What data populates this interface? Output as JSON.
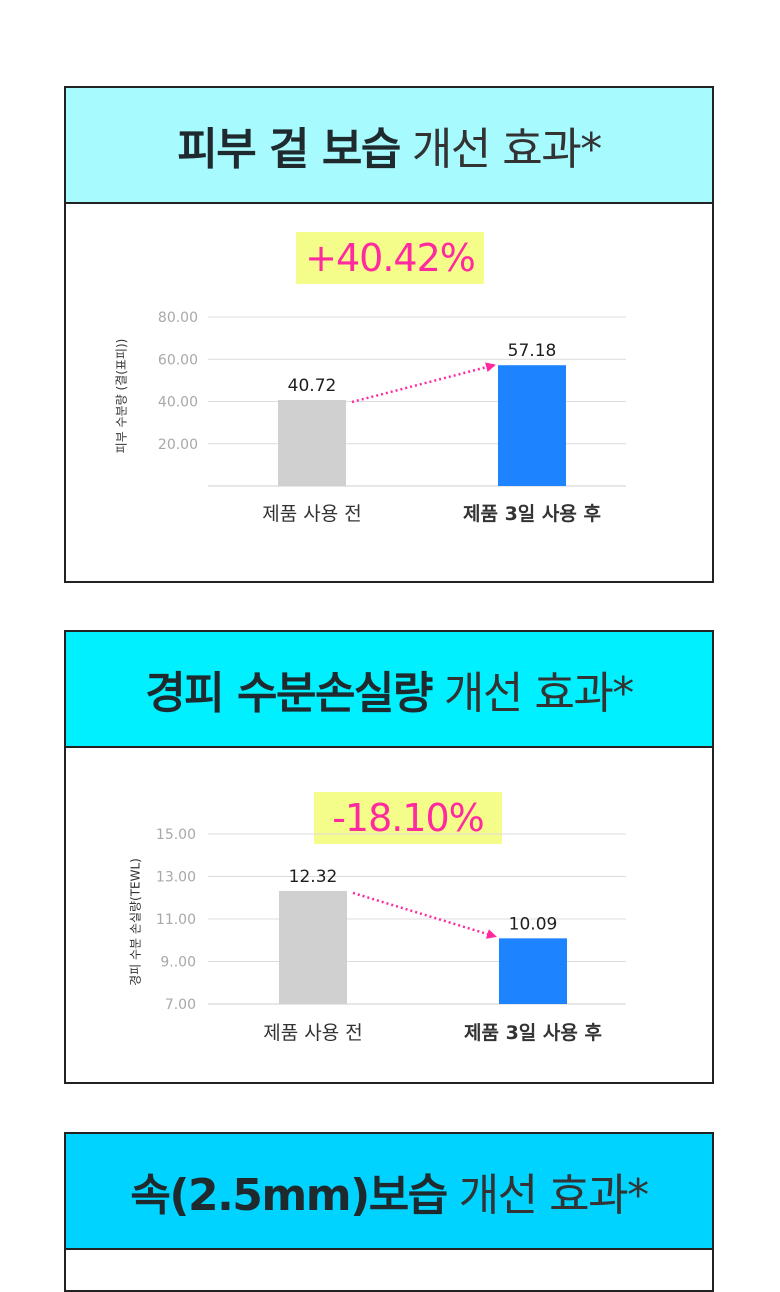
{
  "colors": {
    "before_bar": "#d0d0d0",
    "after_bar": "#1e83ff",
    "arrow": "#ff2aa0",
    "badge_bg": "#f4fc8a",
    "badge_text": "#ff2aa0"
  },
  "panels": [
    {
      "title_bold": "피부 겉 보습",
      "title_light": "개선 효과*",
      "header_color": "#a7fafd",
      "badge": "+40.42%"
    },
    {
      "title_bold": "경피 수분손실량",
      "title_light": "개선 효과*",
      "header_color": "#00f0ff",
      "badge": "-18.10%"
    },
    {
      "title_bold": "속(2.5mm)보습",
      "title_light": "개선 효과*",
      "header_color": "#00d3ff"
    }
  ],
  "chart_data": [
    {
      "type": "bar",
      "ylabel": "피부 수분량 (결(표피))",
      "categories": [
        "제품 사용 전",
        "제품 3일 사용 후"
      ],
      "values": [
        40.72,
        57.18
      ],
      "value_labels": [
        "40.72",
        "57.18"
      ],
      "ylim": [
        0,
        80
      ],
      "yticks": [
        20,
        40,
        60,
        80
      ],
      "ytick_labels": [
        "20.00",
        "40.00",
        "60.00",
        "80.00"
      ],
      "grid": true,
      "annotation": "+40.42%"
    },
    {
      "type": "bar",
      "ylabel": "경피 수분 손실량(TEWL)",
      "categories": [
        "제품 사용 전",
        "제품 3일 사용 후"
      ],
      "values": [
        12.32,
        10.09
      ],
      "value_labels": [
        "12.32",
        "10.09"
      ],
      "ylim": [
        7,
        15
      ],
      "yticks": [
        7,
        9,
        11,
        13,
        15
      ],
      "ytick_labels": [
        "7.00",
        "9..00",
        "11.00",
        "13.00",
        "15.00"
      ],
      "grid": true,
      "annotation": "-18.10%"
    }
  ]
}
